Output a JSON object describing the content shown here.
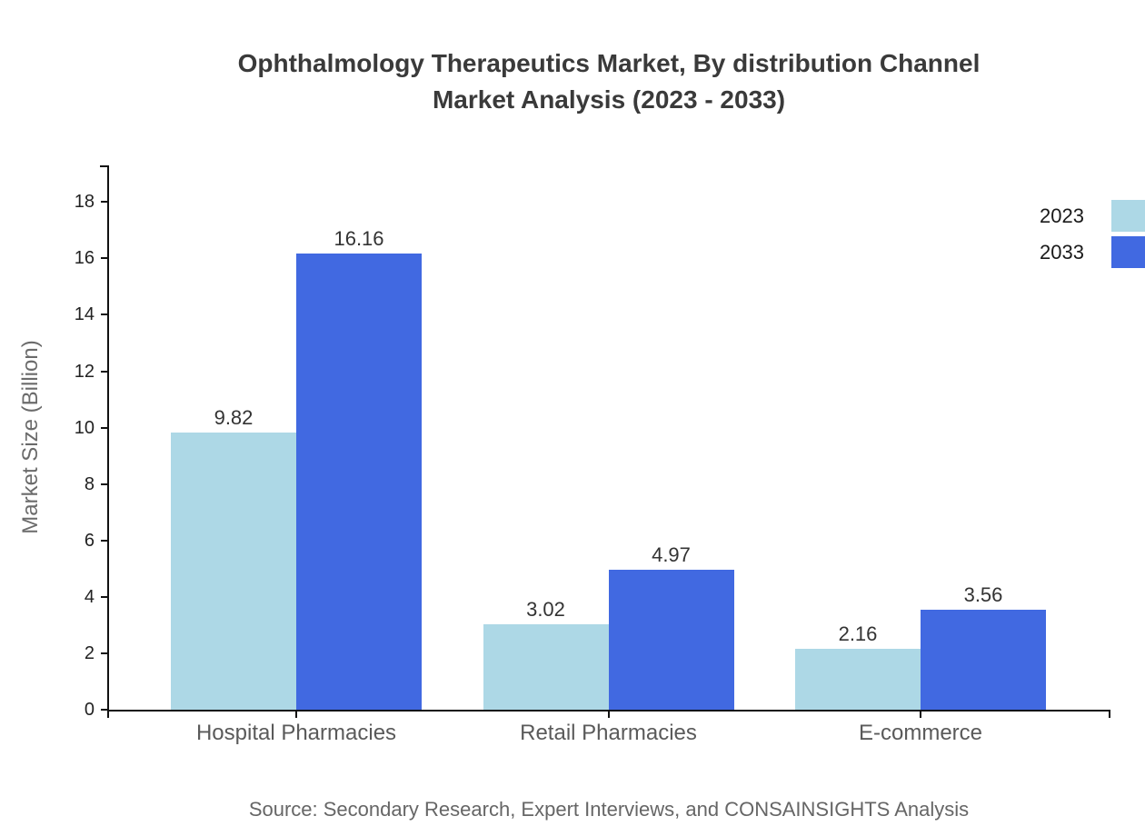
{
  "chart_data": {
    "type": "bar",
    "title_line1": "Ophthalmology Therapeutics Market, By distribution Channel",
    "title_line2": "Market Analysis (2023 - 2033)",
    "ylabel": "Market Size (Billion)",
    "categories": [
      "Hospital Pharmacies",
      "Retail Pharmacies",
      "E-commerce"
    ],
    "series": [
      {
        "name": "2023",
        "color": "#ADD8E6",
        "values": [
          9.82,
          3.02,
          2.16
        ]
      },
      {
        "name": "2033",
        "color": "#4169E1",
        "values": [
          16.16,
          4.97,
          3.56
        ]
      }
    ],
    "ylim": [
      0,
      19.3
    ],
    "yticks": [
      0,
      2,
      4,
      6,
      8,
      10,
      12,
      14,
      16,
      18
    ],
    "grid": false,
    "value_labels_shown": true,
    "legend_position": "top-right",
    "style": {
      "axis_color": "#111111",
      "title_color": "#3a3a3a",
      "tick_label_color": "#222222",
      "category_label_color": "#5a5a5a",
      "value_label_color": "#333333",
      "muted_text_color": "#666666"
    }
  },
  "source_note": "Source: Secondary Research, Expert Interviews, and CONSAINSIGHTS Analysis"
}
